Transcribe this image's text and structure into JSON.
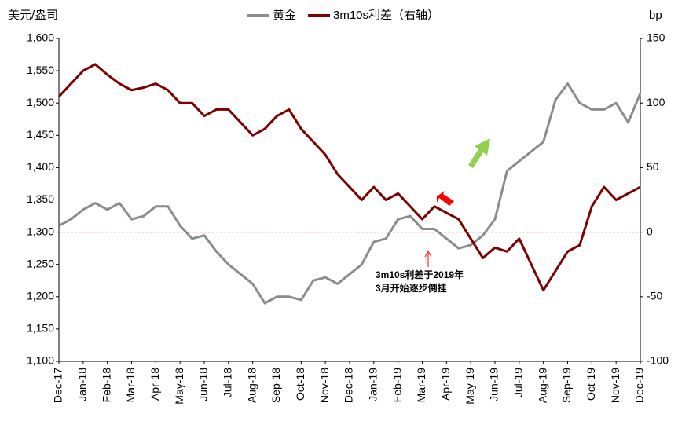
{
  "chart_data": {
    "type": "line",
    "y_label": "美元/盎司",
    "y2_label": "bp",
    "categories": [
      "Dec-17",
      null,
      "Jan-18",
      null,
      "Feb-18",
      null,
      "Mar-18",
      null,
      "Apr-18",
      null,
      "May-18",
      null,
      "Jun-18",
      null,
      "Jul-18",
      null,
      "Aug-18",
      null,
      "Sep-18",
      null,
      "Oct-18",
      null,
      "Nov-18",
      null,
      "Dec-18",
      null,
      "Jan-19",
      null,
      "Feb-19",
      null,
      "Mar-19",
      null,
      "Apr-19",
      null,
      "May-19",
      null,
      "Jun-19",
      null,
      "Jul-19",
      null,
      "Aug-19",
      null,
      "Sep-19",
      null,
      "Oct-19",
      null,
      "Nov-19",
      null,
      "Dec-19"
    ],
    "series": [
      {
        "name": "黄金",
        "color": "#8c8c8c",
        "axis": "y",
        "values": [
          1310,
          1320,
          1335,
          1345,
          1335,
          1345,
          1320,
          1325,
          1340,
          1340,
          1310,
          1290,
          1295,
          1270,
          1250,
          1235,
          1220,
          1190,
          1200,
          1200,
          1195,
          1225,
          1230,
          1220,
          1235,
          1250,
          1285,
          1290,
          1320,
          1325,
          1305,
          1305,
          1290,
          1275,
          1280,
          1295,
          1320,
          1395,
          1410,
          1425,
          1440,
          1505,
          1530,
          1500,
          1490,
          1490,
          1500,
          1470,
          1515
        ]
      },
      {
        "name": "3m10s利差（右轴）",
        "color": "#7f0000",
        "axis": "y2",
        "values": [
          105,
          115,
          125,
          130,
          122,
          115,
          110,
          112,
          115,
          110,
          100,
          100,
          90,
          95,
          95,
          85,
          75,
          80,
          90,
          95,
          80,
          70,
          60,
          45,
          35,
          25,
          35,
          25,
          30,
          20,
          10,
          20,
          15,
          10,
          -5,
          -20,
          -12,
          -15,
          -5,
          -25,
          -45,
          -30,
          -15,
          -10,
          20,
          35,
          25,
          30,
          35
        ]
      }
    ],
    "ylim": [
      1100,
      1600
    ],
    "yticks": [
      {
        "value": 1100,
        "label": "1,100"
      },
      {
        "value": 1150,
        "label": "1,150"
      },
      {
        "value": 1200,
        "label": "1,200"
      },
      {
        "value": 1250,
        "label": "1,250"
      },
      {
        "value": 1300,
        "label": "1,300"
      },
      {
        "value": 1350,
        "label": "1,350"
      },
      {
        "value": 1400,
        "label": "1,400"
      },
      {
        "value": 1450,
        "label": "1,450"
      },
      {
        "value": 1500,
        "label": "1,500"
      },
      {
        "value": 1550,
        "label": "1,550"
      },
      {
        "value": 1600,
        "label": "1,600"
      }
    ],
    "y2lim": [
      -100,
      150
    ],
    "y2ticks": [
      -100,
      -50,
      0,
      50,
      100,
      150
    ],
    "reference_line": 0,
    "annotation": [
      "3m10s利差于2019年",
      "3月开始逐步倒挂"
    ],
    "legend": "top"
  }
}
